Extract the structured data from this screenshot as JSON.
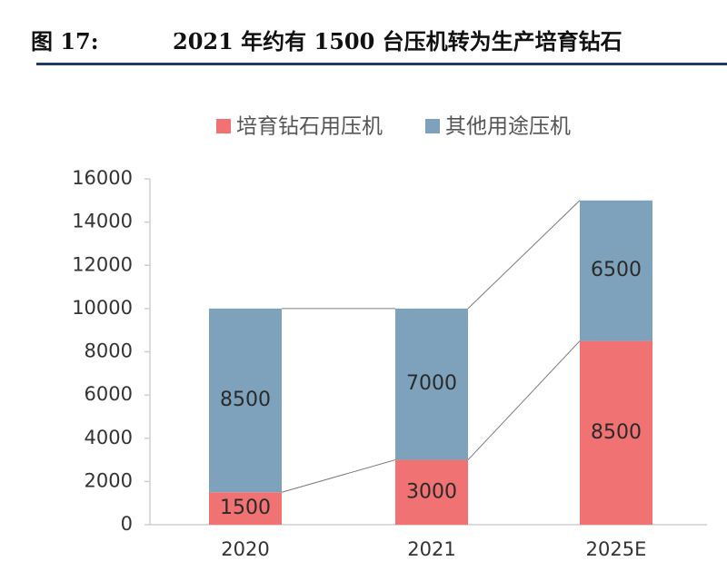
{
  "figure": {
    "number": "图 17:",
    "title": "2021 年约有 1500 台压机转为生产培育钻石"
  },
  "colors": {
    "diamond": "#f07272",
    "other": "#7ea2bb",
    "rule": "#1f3b63",
    "axis": "#cfcfcf",
    "text": "#333333"
  },
  "chart_data": {
    "type": "bar",
    "stacked": true,
    "categories": [
      "2020",
      "2021",
      "2025E"
    ],
    "series": [
      {
        "name": "培育钻石用压机",
        "values": [
          1500,
          3000,
          8500
        ]
      },
      {
        "name": "其他用途压机",
        "values": [
          8500,
          7000,
          6500
        ]
      }
    ],
    "ylim": [
      0,
      16000
    ],
    "yticks": [
      "0",
      "2000",
      "4000",
      "6000",
      "8000",
      "10000",
      "12000",
      "14000",
      "16000"
    ],
    "grid": false,
    "legend": "top",
    "data_labels": true
  }
}
